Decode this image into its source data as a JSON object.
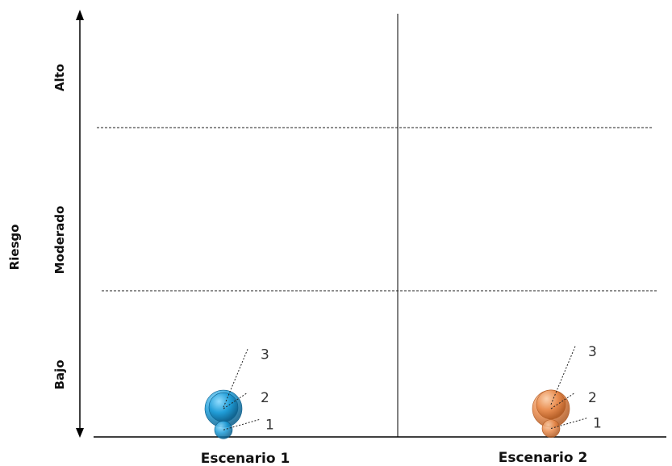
{
  "chart_data": {
    "type": "scatter",
    "title": "",
    "ylabel": "Riesgo",
    "risk_levels": [
      "Bajo",
      "Moderado",
      "Alto"
    ],
    "categories": [
      "Escenario 1",
      "Escenario 2"
    ],
    "grid": "dashed separators between risk levels; vertical divider between scenarios",
    "series": [
      {
        "category": "Escenario 1",
        "color": "#1a9ad6",
        "points": [
          {
            "label": "1",
            "y": 0.05
          },
          {
            "label": "2",
            "y": 0.2
          },
          {
            "label": "3",
            "y": 0.21
          }
        ]
      },
      {
        "category": "Escenario 2",
        "color": "#e8894a",
        "points": [
          {
            "label": "1",
            "y": 0.06
          },
          {
            "label": "2",
            "y": 0.2
          },
          {
            "label": "3",
            "y": 0.23
          }
        ]
      }
    ]
  }
}
